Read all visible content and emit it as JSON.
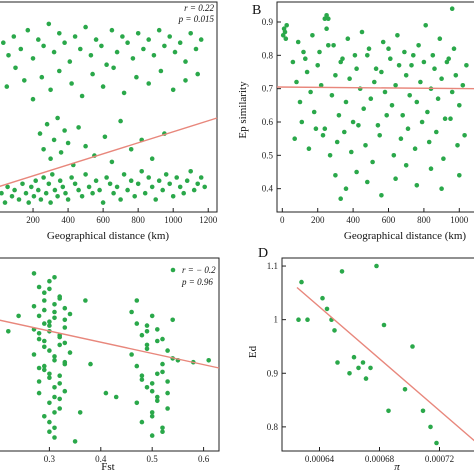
{
  "chart_data": [
    {
      "id": "A",
      "type": "scatter",
      "panel_label": "",
      "title": "",
      "xlabel": "Geographical distance (km)",
      "ylabel": "",
      "xlim": [
        0,
        1250
      ],
      "ylim": [
        0.3,
        0.97
      ],
      "xticks": [
        0,
        200,
        400,
        600,
        800,
        1000,
        1200
      ],
      "yticks": [],
      "stats": [
        "r = 0.22",
        "p = 0.015"
      ],
      "fit_line": {
        "x": [
          0,
          1250
        ],
        "y": [
          0.38,
          0.6
        ]
      },
      "points": {
        "x": [
          5,
          20,
          40,
          55,
          80,
          95,
          120,
          140,
          160,
          175,
          190,
          205,
          215,
          230,
          245,
          260,
          275,
          290,
          300,
          310,
          325,
          340,
          355,
          370,
          385,
          400,
          420,
          440,
          460,
          480,
          500,
          520,
          540,
          560,
          580,
          600,
          620,
          640,
          660,
          680,
          700,
          720,
          740,
          760,
          780,
          800,
          820,
          840,
          860,
          880,
          900,
          920,
          940,
          960,
          980,
          1000,
          1020,
          1040,
          1060,
          1080,
          1100,
          1120,
          1140,
          1160,
          1180,
          30,
          60,
          90,
          130,
          170,
          200,
          230,
          260,
          290,
          320,
          350,
          380,
          410,
          440,
          470,
          500,
          530,
          560,
          590,
          620,
          650,
          680,
          710,
          740,
          770,
          800,
          830,
          860,
          890,
          920,
          950,
          980,
          1010,
          1040,
          1070,
          1100,
          1130,
          1160,
          10,
          50,
          100,
          150,
          200,
          250,
          300,
          350,
          420,
          480,
          540,
          600,
          660,
          720,
          790,
          860,
          930,
          1000,
          1070,
          1140,
          240,
          260,
          280,
          300,
          320,
          340,
          360,
          380,
          400,
          430,
          460,
          500,
          550,
          610,
          650,
          700,
          760,
          820,
          880,
          950
        ],
        "y": [
          0.34,
          0.36,
          0.33,
          0.38,
          0.35,
          0.37,
          0.34,
          0.39,
          0.36,
          0.33,
          0.38,
          0.35,
          0.4,
          0.37,
          0.34,
          0.41,
          0.36,
          0.39,
          0.33,
          0.42,
          0.37,
          0.35,
          0.4,
          0.38,
          0.36,
          0.34,
          0.41,
          0.39,
          0.37,
          0.35,
          0.42,
          0.38,
          0.36,
          0.4,
          0.37,
          0.33,
          0.41,
          0.39,
          0.36,
          0.38,
          0.34,
          0.42,
          0.37,
          0.4,
          0.35,
          0.39,
          0.43,
          0.36,
          0.41,
          0.38,
          0.34,
          0.4,
          0.37,
          0.42,
          0.39,
          0.35,
          0.41,
          0.38,
          0.36,
          0.4,
          0.43,
          0.37,
          0.39,
          0.41,
          0.38,
          0.84,
          0.8,
          0.86,
          0.82,
          0.88,
          0.79,
          0.85,
          0.83,
          0.9,
          0.81,
          0.87,
          0.84,
          0.78,
          0.86,
          0.82,
          0.89,
          0.8,
          0.85,
          0.83,
          0.77,
          0.88,
          0.81,
          0.86,
          0.84,
          0.79,
          0.87,
          0.82,
          0.85,
          0.8,
          0.88,
          0.83,
          0.86,
          0.81,
          0.84,
          0.78,
          0.87,
          0.82,
          0.85,
          0.74,
          0.7,
          0.76,
          0.72,
          0.66,
          0.73,
          0.69,
          0.75,
          0.71,
          0.67,
          0.74,
          0.7,
          0.76,
          0.68,
          0.73,
          0.71,
          0.75,
          0.69,
          0.72,
          0.74,
          0.55,
          0.5,
          0.58,
          0.47,
          0.53,
          0.6,
          0.49,
          0.56,
          0.52,
          0.45,
          0.57,
          0.51,
          0.48,
          0.54,
          0.46,
          0.59,
          0.5,
          0.53,
          0.47,
          0.55
        ]
      }
    },
    {
      "id": "B",
      "type": "scatter",
      "panel_label": "B",
      "title": "",
      "xlabel": "Geographical distance (km)",
      "ylabel": "Ep similarity",
      "xlim": [
        -30,
        1100
      ],
      "ylim": [
        0.33,
        0.96
      ],
      "xticks": [
        0,
        200,
        400,
        600,
        800,
        1000
      ],
      "yticks": [
        0.4,
        0.5,
        0.6,
        0.7,
        0.8,
        0.9
      ],
      "stats": [],
      "fit_line": {
        "x": [
          -30,
          1100
        ],
        "y": [
          0.705,
          0.7
        ]
      },
      "points": {
        "x": [
          5,
          10,
          15,
          20,
          25,
          60,
          80,
          100,
          120,
          140,
          160,
          180,
          200,
          220,
          240,
          260,
          280,
          300,
          320,
          340,
          360,
          380,
          400,
          420,
          440,
          460,
          480,
          500,
          520,
          540,
          560,
          580,
          600,
          620,
          640,
          660,
          680,
          700,
          720,
          740,
          760,
          780,
          800,
          820,
          840,
          860,
          880,
          900,
          920,
          940,
          960,
          980,
          1000,
          1020,
          1040,
          70,
          110,
          150,
          190,
          230,
          270,
          310,
          350,
          390,
          430,
          470,
          510,
          550,
          590,
          630,
          670,
          710,
          750,
          790,
          830,
          870,
          910,
          950,
          990,
          1030,
          90,
          130,
          170,
          210,
          250,
          290,
          330,
          370,
          410,
          450,
          490,
          530,
          570,
          610,
          650,
          690,
          730,
          770,
          810,
          850,
          890,
          930,
          970,
          240,
          250,
          260,
          300,
          330,
          360,
          420,
          480,
          560,
          640,
          700,
          760,
          840,
          900,
          960,
          1000
        ],
        "y": [
          0.86,
          0.88,
          0.87,
          0.85,
          0.89,
          0.78,
          0.72,
          0.66,
          0.81,
          0.75,
          0.69,
          0.63,
          0.77,
          0.71,
          0.58,
          0.83,
          0.68,
          0.74,
          0.62,
          0.79,
          0.66,
          0.73,
          0.6,
          0.76,
          0.7,
          0.64,
          0.8,
          0.67,
          0.72,
          0.59,
          0.75,
          0.69,
          0.82,
          0.65,
          0.71,
          0.77,
          0.62,
          0.74,
          0.68,
          0.8,
          0.66,
          0.72,
          0.78,
          0.63,
          0.7,
          0.76,
          0.67,
          0.73,
          0.61,
          0.79,
          0.69,
          0.74,
          0.65,
          0.71,
          0.77,
          0.55,
          0.6,
          0.52,
          0.58,
          0.56,
          0.5,
          0.54,
          0.57,
          0.51,
          0.59,
          0.53,
          0.48,
          0.56,
          0.62,
          0.5,
          0.55,
          0.58,
          0.52,
          0.6,
          0.54,
          0.57,
          0.49,
          0.61,
          0.53,
          0.56,
          0.84,
          0.79,
          0.86,
          0.81,
          0.88,
          0.83,
          0.78,
          0.85,
          0.8,
          0.87,
          0.82,
          0.76,
          0.84,
          0.79,
          0.86,
          0.81,
          0.77,
          0.83,
          0.89,
          0.8,
          0.85,
          0.78,
          0.82,
          0.91,
          0.92,
          0.91,
          0.44,
          0.37,
          0.4,
          0.45,
          0.42,
          0.38,
          0.43,
          0.47,
          0.41,
          0.46,
          0.4,
          0.94,
          0.44
        ]
      }
    },
    {
      "id": "C",
      "type": "scatter",
      "panel_label": "",
      "title": "",
      "xlabel": "Fst",
      "ylabel": "",
      "xlim": [
        0.2,
        0.63
      ],
      "ylim": [
        0.0,
        1.0
      ],
      "xticks": [
        0.3,
        0.4,
        0.5,
        0.6
      ],
      "yticks": [],
      "stats": [
        "r = − 0.2",
        "p = 0.96"
      ],
      "fit_line": {
        "x": [
          0.2,
          0.63
        ],
        "y": [
          0.68,
          0.43
        ]
      },
      "points": {
        "x": [
          0.27,
          0.28,
          0.29,
          0.3,
          0.31,
          0.32,
          0.33,
          0.27,
          0.28,
          0.29,
          0.3,
          0.31,
          0.32,
          0.33,
          0.34,
          0.28,
          0.29,
          0.3,
          0.31,
          0.32,
          0.33,
          0.27,
          0.28,
          0.29,
          0.3,
          0.31,
          0.32,
          0.33,
          0.29,
          0.3,
          0.31,
          0.32,
          0.28,
          0.29,
          0.3,
          0.31,
          0.32,
          0.33,
          0.34,
          0.27,
          0.3,
          0.31,
          0.32,
          0.29,
          0.3,
          0.31,
          0.28,
          0.33,
          0.3,
          0.31,
          0.29,
          0.32,
          0.3,
          0.28,
          0.31,
          0.33,
          0.3,
          0.29,
          0.32,
          0.31,
          0.46,
          0.47,
          0.48,
          0.49,
          0.5,
          0.51,
          0.52,
          0.53,
          0.54,
          0.55,
          0.46,
          0.47,
          0.48,
          0.49,
          0.5,
          0.51,
          0.52,
          0.53,
          0.54,
          0.47,
          0.48,
          0.49,
          0.5,
          0.51,
          0.52,
          0.53,
          0.48,
          0.49,
          0.5,
          0.51,
          0.52,
          0.49,
          0.5,
          0.51,
          0.5,
          0.53,
          0.47,
          0.52,
          0.22,
          0.24,
          0.36,
          0.38,
          0.41,
          0.43,
          0.37,
          0.58,
          0.61,
          0.35
        ],
        "y": [
          0.92,
          0.85,
          0.78,
          0.88,
          0.72,
          0.8,
          0.68,
          0.75,
          0.7,
          0.82,
          0.65,
          0.76,
          0.6,
          0.74,
          0.71,
          0.58,
          0.66,
          0.62,
          0.69,
          0.55,
          0.64,
          0.5,
          0.61,
          0.57,
          0.52,
          0.47,
          0.59,
          0.45,
          0.42,
          0.38,
          0.49,
          0.35,
          0.3,
          0.44,
          0.4,
          0.33,
          0.27,
          0.46,
          0.51,
          0.63,
          0.25,
          0.2,
          0.22,
          0.18,
          0.15,
          0.28,
          0.36,
          0.31,
          0.1,
          0.07,
          0.54,
          0.39,
          0.84,
          0.43,
          0.9,
          0.56,
          0.67,
          0.73,
          0.79,
          0.12,
          0.72,
          0.66,
          0.6,
          0.55,
          0.7,
          0.63,
          0.58,
          0.52,
          0.68,
          0.47,
          0.5,
          0.44,
          0.39,
          0.62,
          0.35,
          0.57,
          0.41,
          0.3,
          0.48,
          0.25,
          0.37,
          0.33,
          0.2,
          0.28,
          0.45,
          0.22,
          0.15,
          0.53,
          0.18,
          0.4,
          0.1,
          0.65,
          0.08,
          0.26,
          0.31,
          0.36,
          0.78,
          0.12,
          0.62,
          0.7,
          0.2,
          0.45,
          0.3,
          0.28,
          0.78,
          0.46,
          0.47,
          0.05
        ]
      }
    },
    {
      "id": "D",
      "type": "scatter",
      "panel_label": "D",
      "title": "",
      "xlabel": "π",
      "ylabel": "Ed",
      "xlim": [
        0.000615,
        0.000745
      ],
      "ylim": [
        0.755,
        1.115
      ],
      "xticks": [
        0.00064,
        0.00068,
        0.00072
      ],
      "xtick_labels": [
        "0.00064",
        "0.00068",
        "0.00072"
      ],
      "yticks": [
        0.8,
        0.9,
        1.0,
        1.1
      ],
      "stats": [],
      "fit_line": {
        "x": [
          0.000625,
          0.000745
        ],
        "y": [
          1.06,
          0.77
        ]
      },
      "points": {
        "x": [
          0.000626,
          0.000628,
          0.000632,
          0.000642,
          0.000645,
          0.000648,
          0.00065,
          0.000652,
          0.000655,
          0.00066,
          0.000663,
          0.000666,
          0.000669,
          0.000671,
          0.000674,
          0.000678,
          0.000683,
          0.000686,
          0.000697,
          0.000702,
          0.000709,
          0.000714,
          0.000718
        ],
        "y": [
          1.0,
          1.07,
          1.0,
          1.04,
          1.02,
          1.0,
          0.98,
          0.92,
          1.09,
          0.9,
          0.93,
          0.91,
          0.92,
          0.89,
          0.91,
          1.1,
          0.99,
          0.83,
          0.87,
          0.95,
          0.83,
          0.8,
          0.77
        ]
      }
    }
  ]
}
